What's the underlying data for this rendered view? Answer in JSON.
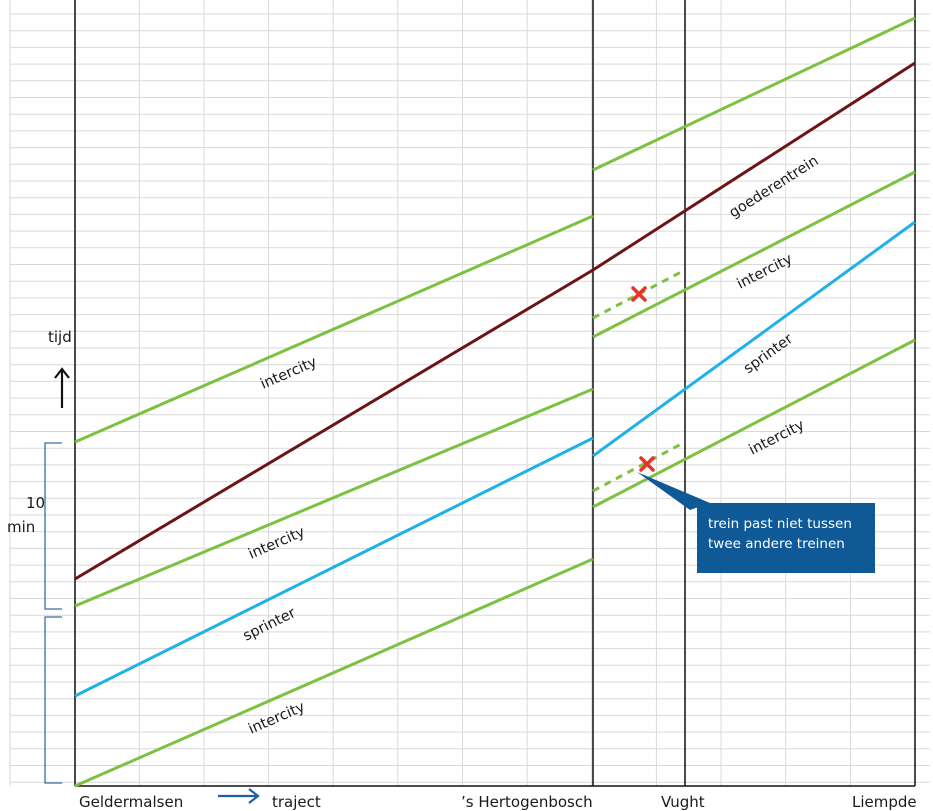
{
  "axes": {
    "y_label": "tijd",
    "y_interval_label_1": "10",
    "y_interval_label_2": "min",
    "x_labels": [
      "Geldermalsen",
      "traject",
      "’s Hertogenbosch",
      "Vught",
      "Liempde"
    ]
  },
  "stations": [
    "Geldermalsen",
    "’s Hertogenbosch",
    "Vught",
    "Liempde"
  ],
  "train_labels": {
    "intercity_1": "intercity",
    "intercity_2": "intercity",
    "intercity_3": "intercity",
    "intercity_4": "intercity",
    "intercity_5": "intercity",
    "sprinter_1": "sprinter",
    "sprinter_2": "sprinter",
    "goederentrein": "goederentrein"
  },
  "callout": {
    "line1": "trein past niet tussen",
    "line2": "twee andere treinen"
  },
  "colors": {
    "intercity": "#7dc142",
    "sprinter": "#1fb2e6",
    "goederentrein": "#6d1416",
    "conflict_marker": "#e8332a",
    "callout_bg": "#0f5a96",
    "grid": "#d9d9d9",
    "bracket": "#3a6ea5",
    "axis_arrow": "#1f5fa8"
  }
}
